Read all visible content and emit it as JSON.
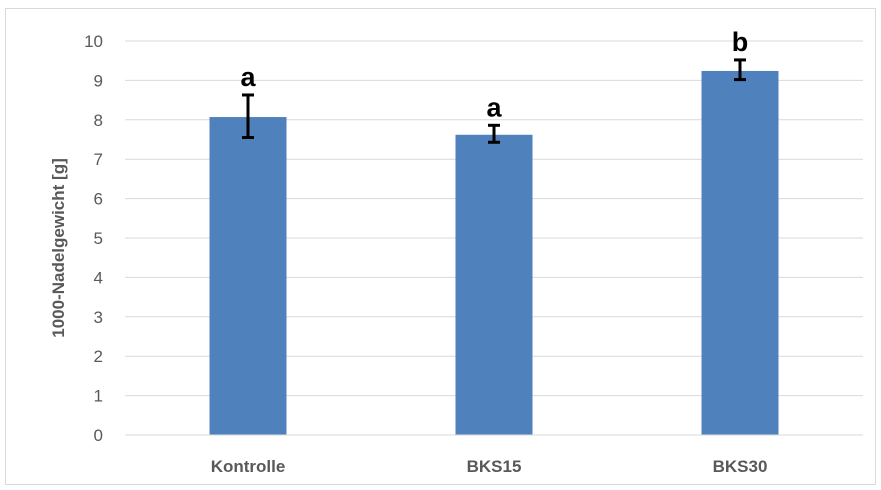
{
  "chart_data": {
    "type": "bar",
    "title": "",
    "xlabel": "",
    "ylabel": "1000-Nadelgewicht [g]",
    "categories": [
      "Kontrolle",
      "BKS15",
      "BKS30"
    ],
    "values": [
      8.07,
      7.62,
      9.24
    ],
    "error_low": [
      7.55,
      7.43,
      9.02
    ],
    "error_high": [
      8.63,
      7.86,
      9.52
    ],
    "significance_letters": [
      "a",
      "a",
      "b"
    ],
    "ylim": [
      0,
      10
    ],
    "yticks": [
      "0",
      "1",
      "2",
      "3",
      "4",
      "5",
      "6",
      "7",
      "8",
      "9",
      "10"
    ],
    "grid": true,
    "legend": "none",
    "bar_color": "#4f81bd",
    "gridline_color": "#d9d9d9",
    "error_bar_color": "#000000"
  }
}
